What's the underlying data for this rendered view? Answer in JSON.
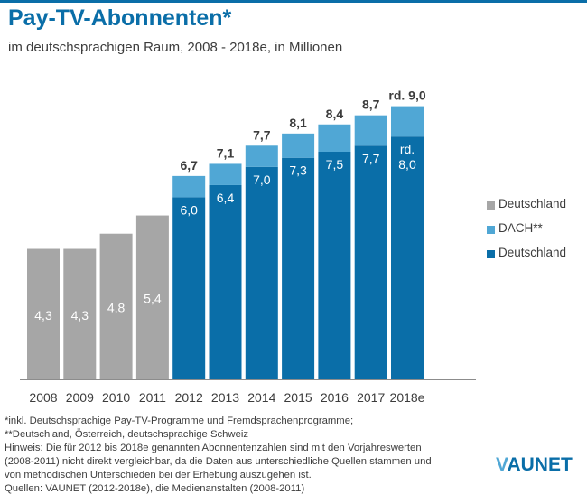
{
  "header": {
    "title": "Pay-TV-Abonnenten*",
    "subtitle": "im deutschsprachigen Raum, 2008 - 2018e, in Millionen"
  },
  "colors": {
    "accent": "#0a6ea8",
    "deutschland_historic": "#a6a6a6",
    "dach": "#50a7d5",
    "deutschland": "#0a6ea8"
  },
  "chart_data": {
    "type": "bar",
    "stacked": true,
    "categories": [
      "2008",
      "2009",
      "2010",
      "2011",
      "2012",
      "2013",
      "2014",
      "2015",
      "2016",
      "2017",
      "2018e"
    ],
    "series": [
      {
        "name": "Deutschland",
        "color": "#a6a6a6",
        "values": [
          4.3,
          4.3,
          4.8,
          5.4,
          null,
          null,
          null,
          null,
          null,
          null,
          null
        ]
      },
      {
        "name": "Deutschland",
        "color": "#0a6ea8",
        "values": [
          null,
          null,
          null,
          null,
          6.0,
          6.4,
          7.0,
          7.3,
          7.5,
          7.7,
          8.0
        ]
      },
      {
        "name": "DACH**",
        "color": "#50a7d5",
        "values": [
          null,
          null,
          null,
          null,
          0.7,
          0.7,
          0.7,
          0.8,
          0.9,
          1.0,
          1.0
        ]
      }
    ],
    "inner_labels": [
      "4,3",
      "4,3",
      "4,8",
      "5,4",
      "6,0",
      "6,4",
      "7,0",
      "7,3",
      "7,5",
      "7,7",
      "rd.\n8,0"
    ],
    "total_labels": [
      "",
      "",
      "",
      "",
      "6,7",
      "7,1",
      "7,7",
      "8,1",
      "8,4",
      "8,7",
      "rd. 9,0"
    ],
    "legend": [
      "Deutschland",
      "DACH**",
      "Deutschland"
    ],
    "legend_position": "right",
    "ylim": [
      0,
      9.0
    ],
    "grid": false
  },
  "notes": [
    "*inkl. Deutschsprachige Pay-TV-Programme und Fremdsprachenprogramme;",
    "**Deutschland, Österreich, deutschsprachige Schweiz",
    "Hinweis: Die für 2012 bis 2018e genannten Abonnentenzahlen sind mit den Vorjahreswerten",
    "(2008-2011) nicht direkt vergleichbar, da die Daten aus unterschiedliche Quellen stammen und",
    "von methodischen Unterschieden bei der Erhebung auszugehen ist.",
    "Quellen: VAUNET (2012-2018e), die Medienanstalten (2008-2011)"
  ],
  "logo": {
    "text_v": "V",
    "text_rest": "AUNET"
  }
}
